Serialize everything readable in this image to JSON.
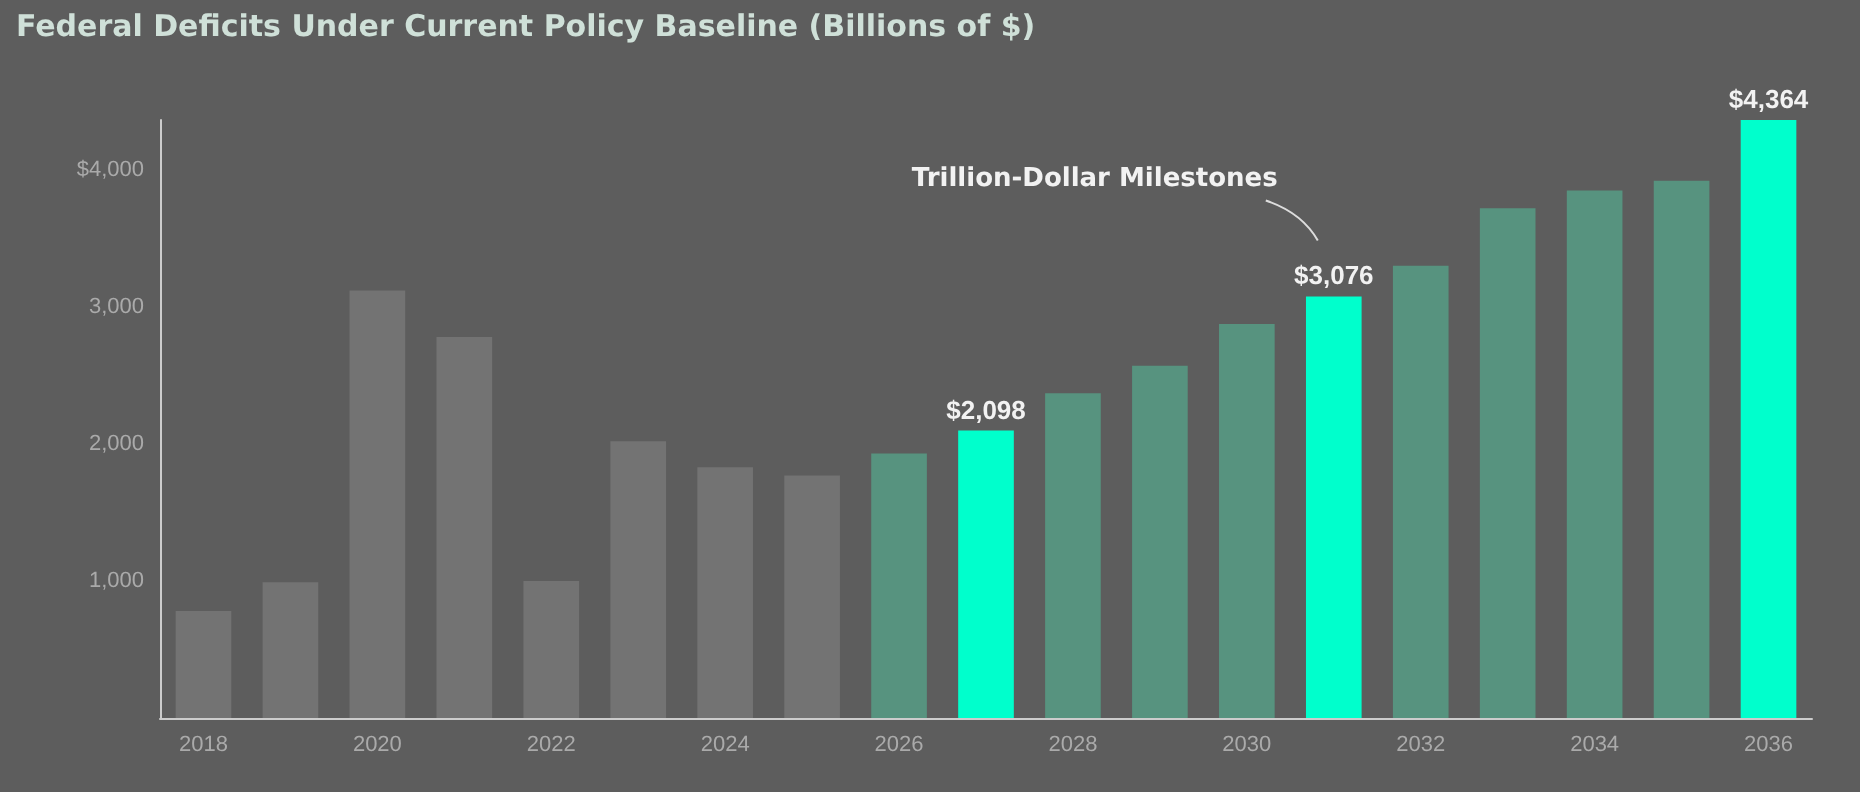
{
  "chart_data": {
    "type": "bar",
    "title": "Federal Deficits Under Current Policy Baseline (Billions of $)",
    "categories": [
      "2018",
      null,
      "2020",
      null,
      "2022",
      null,
      "2024",
      null,
      "2026",
      null,
      "2028",
      null,
      "2030",
      null,
      "2032",
      null,
      "2034",
      null,
      "2036"
    ],
    "values": [
      780,
      990,
      3120,
      2780,
      1000,
      2020,
      1830,
      1770,
      1930,
      2098,
      2370,
      2570,
      2875,
      3076,
      3300,
      3720,
      3850,
      3920,
      4364
    ],
    "colors": [
      "#737373",
      "#737373",
      "#737373",
      "#737373",
      "#737373",
      "#737373",
      "#737373",
      "#737373",
      "#57937f",
      "#00ffcc",
      "#57937f",
      "#57937f",
      "#57937f",
      "#00ffcc",
      "#57937f",
      "#57937f",
      "#57937f",
      "#57937f",
      "#00ffcc"
    ],
    "value_labels": [
      null,
      null,
      null,
      null,
      null,
      null,
      null,
      null,
      null,
      "$2,098",
      null,
      null,
      null,
      "$3,076",
      null,
      null,
      null,
      null,
      "$4,364"
    ],
    "ylim": [
      0,
      4364
    ],
    "yticks": [
      {
        "value": 1000,
        "label": "1,000"
      },
      {
        "value": 2000,
        "label": "2,000"
      },
      {
        "value": 3000,
        "label": "3,000"
      },
      {
        "value": 4000,
        "label": "$4,000"
      }
    ],
    "annotations": [
      "Trillion-Dollar Milestones"
    ]
  }
}
